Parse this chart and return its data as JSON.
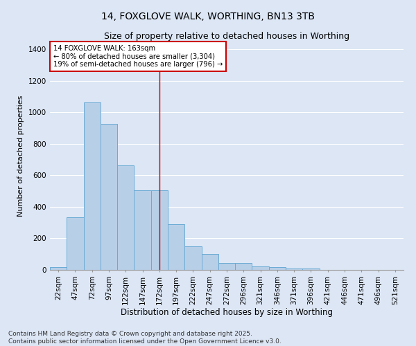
{
  "title_line1": "14, FOXGLOVE WALK, WORTHING, BN13 3TB",
  "title_line2": "Size of property relative to detached houses in Worthing",
  "xlabel": "Distribution of detached houses by size in Worthing",
  "ylabel": "Number of detached properties",
  "categories": [
    "22sqm",
    "47sqm",
    "72sqm",
    "97sqm",
    "122sqm",
    "147sqm",
    "172sqm",
    "197sqm",
    "222sqm",
    "247sqm",
    "272sqm",
    "296sqm",
    "321sqm",
    "346sqm",
    "371sqm",
    "396sqm",
    "421sqm",
    "446sqm",
    "471sqm",
    "496sqm",
    "521sqm"
  ],
  "values": [
    18,
    335,
    1065,
    925,
    665,
    505,
    505,
    290,
    150,
    100,
    42,
    42,
    22,
    18,
    10,
    8,
    0,
    0,
    0,
    0,
    0
  ],
  "bar_color": "#b8cfe8",
  "bar_edge_color": "#6aaad4",
  "background_color": "#dce6f5",
  "grid_color": "#ffffff",
  "vline_x_index": 6,
  "vline_color": "#cc0000",
  "annotation_text": "14 FOXGLOVE WALK: 163sqm\n← 80% of detached houses are smaller (3,304)\n19% of semi-detached houses are larger (796) →",
  "annotation_box_color": "#ffffff",
  "annotation_box_edge": "#cc0000",
  "footnote": "Contains HM Land Registry data © Crown copyright and database right 2025.\nContains public sector information licensed under the Open Government Licence v3.0.",
  "ylim": [
    0,
    1450
  ],
  "yticks": [
    0,
    200,
    400,
    600,
    800,
    1000,
    1200,
    1400
  ],
  "title_fontsize": 10,
  "subtitle_fontsize": 9,
  "tick_fontsize": 7.5,
  "ylabel_fontsize": 8,
  "xlabel_fontsize": 8.5,
  "footnote_fontsize": 6.5
}
